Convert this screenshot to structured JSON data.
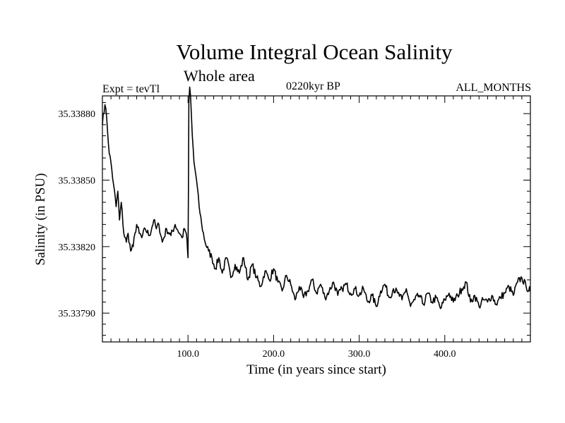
{
  "header": {
    "title": "Volume Integral Ocean Salinity",
    "subtitle": "Whole area",
    "experiment": "Expt = tevTl",
    "period": "0220kyr BP",
    "months": "ALL_MONTHS"
  },
  "chart_data": {
    "type": "line",
    "xlabel": "Time (in years since start)",
    "ylabel": "Salinity (in PSU)",
    "xlim": [
      0,
      500
    ],
    "ylim": [
      35.33777,
      35.33888
    ],
    "xticks": [
      100,
      200,
      300,
      400
    ],
    "xtick_labels": [
      "100.0",
      "200.0",
      "300.0",
      "400.0"
    ],
    "yticks": [
      35.3379,
      35.3382,
      35.3385,
      35.3388
    ],
    "ytick_labels": [
      "35.33790",
      "35.33820",
      "35.33850",
      "35.33880"
    ],
    "grid": false,
    "series": [
      {
        "x": [
          0,
          1,
          3,
          5,
          8,
          10,
          13,
          16,
          18,
          20,
          22,
          25,
          28,
          30,
          33,
          36,
          38,
          40,
          43,
          46,
          50,
          55,
          60,
          63,
          66,
          70,
          75,
          80,
          85,
          90,
          93,
          96,
          98,
          99.5,
          100,
          100.5,
          101,
          102,
          103,
          105,
          107,
          110,
          113,
          116,
          120,
          124,
          128,
          132,
          136,
          140,
          145,
          150,
          155,
          160,
          165,
          170,
          175,
          180,
          185,
          190,
          195,
          200,
          205,
          210,
          215,
          220,
          225,
          230,
          235,
          240,
          245,
          250,
          255,
          260,
          265,
          270,
          275,
          280,
          285,
          290,
          295,
          300,
          305,
          310,
          315,
          320,
          325,
          330,
          335,
          340,
          345,
          350,
          355,
          360,
          365,
          370,
          375,
          380,
          385,
          390,
          395,
          400,
          405,
          410,
          415,
          420,
          425,
          430,
          435,
          440,
          445,
          450,
          455,
          460,
          465,
          470,
          475,
          480,
          485,
          490,
          495,
          500
        ],
        "y": [
          35.33875,
          35.3388,
          35.33884,
          35.33878,
          35.33862,
          35.33858,
          35.33848,
          35.33838,
          35.33845,
          35.33832,
          35.3384,
          35.33826,
          35.33822,
          35.33826,
          35.33818,
          35.3382,
          35.33826,
          35.3383,
          35.33826,
          35.33824,
          35.33828,
          35.33825,
          35.33832,
          35.33828,
          35.3383,
          35.33822,
          35.33828,
          35.33825,
          35.3383,
          35.33826,
          35.33824,
          35.33828,
          35.33826,
          35.33818,
          35.33815,
          35.33845,
          35.33885,
          35.33892,
          35.33888,
          35.3387,
          35.33858,
          35.3385,
          35.33838,
          35.3383,
          35.33822,
          35.33818,
          35.33815,
          35.3381,
          35.33815,
          35.33808,
          35.33815,
          35.33806,
          35.33812,
          35.33808,
          35.33815,
          35.33805,
          35.33812,
          35.33806,
          35.33802,
          35.33809,
          35.33805,
          35.3381,
          35.33804,
          35.338,
          35.33807,
          35.33803,
          35.33796,
          35.33802,
          35.33797,
          35.338,
          35.33805,
          35.33799,
          35.33803,
          35.33797,
          35.338,
          35.33804,
          35.33798,
          35.33801,
          35.33803,
          35.33799,
          35.33801,
          35.33798,
          35.33801,
          35.33795,
          35.33798,
          35.33793,
          35.338,
          35.33803,
          35.33797,
          35.33801,
          35.33799,
          35.33796,
          35.33801,
          35.33793,
          35.33796,
          35.33798,
          35.33794,
          35.33799,
          35.33795,
          35.33797,
          35.33792,
          35.33796,
          35.33799,
          35.33795,
          35.33798,
          35.33801,
          35.33804,
          35.33795,
          35.33798,
          35.33793,
          35.33796,
          35.33795,
          35.33798,
          35.33794,
          35.33797,
          35.33799,
          35.33802,
          35.33798,
          35.33804,
          35.33806,
          35.33802,
          35.338
        ]
      }
    ]
  }
}
